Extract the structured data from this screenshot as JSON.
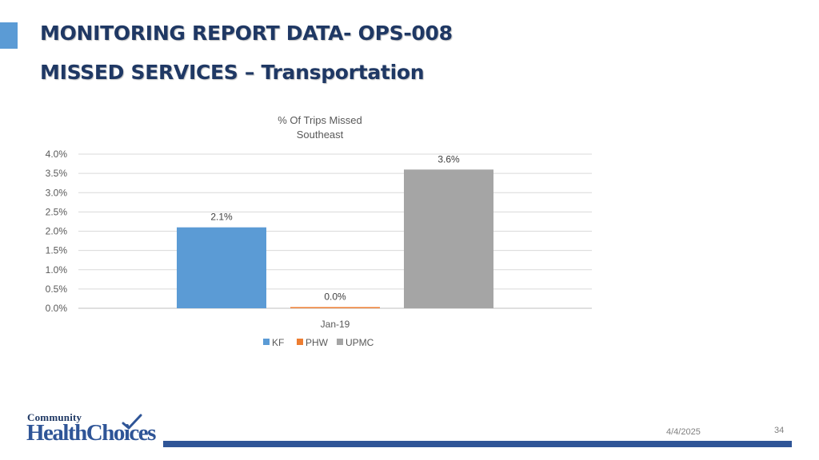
{
  "slide": {
    "title_line1": "MONITORING REPORT DATA- OPS-008",
    "title_line2": "MISSED SERVICES – Transportation",
    "date": "4/4/2025",
    "page_number": "34",
    "logo_top": "Community",
    "logo_bottom": "HealthChoices"
  },
  "colors": {
    "accent": "#5b9bd5",
    "title": "#1f3864",
    "footer_bar": "#2f5597"
  },
  "chart_data": {
    "type": "bar",
    "title": "% Of  Trips Missed",
    "subtitle": "Southeast",
    "categories": [
      "Jan-19"
    ],
    "series": [
      {
        "name": "KF",
        "values": [
          2.1
        ],
        "color": "#5b9bd5",
        "label": "2.1%"
      },
      {
        "name": "PHW",
        "values": [
          0.0
        ],
        "color": "#ed7d31",
        "label": "0.0%"
      },
      {
        "name": "UPMC",
        "values": [
          3.6
        ],
        "color": "#a5a5a5",
        "label": "3.6%"
      }
    ],
    "ylim": [
      0,
      4
    ],
    "yticks": [
      "0.0%",
      "0.5%",
      "1.0%",
      "1.5%",
      "2.0%",
      "2.5%",
      "3.0%",
      "3.5%",
      "4.0%"
    ],
    "grid": true,
    "legend_position": "bottom"
  }
}
